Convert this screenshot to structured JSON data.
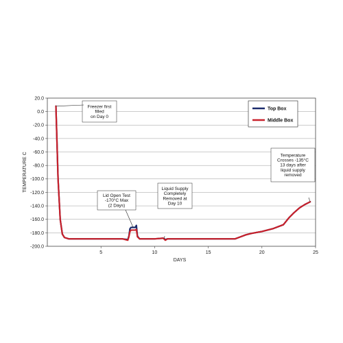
{
  "chart_data": {
    "type": "line",
    "title": "",
    "xlabel": "DAYS",
    "ylabel": "TEMPERATURE C",
    "xlim": [
      0,
      25
    ],
    "ylim": [
      -200,
      20
    ],
    "x_ticks": [
      5,
      10,
      15,
      20,
      25
    ],
    "y_ticks": [
      20,
      0,
      -20,
      -40,
      -60,
      -80,
      -100,
      -120,
      -140,
      -160,
      -180,
      -200
    ],
    "x_tick_labels": [
      "5",
      "10",
      "15",
      "20",
      "25"
    ],
    "y_tick_labels": [
      "20.0",
      "0.0",
      "-20.0",
      "-40.0",
      "-60.0",
      "-80.0",
      "-100.0",
      "-120.0",
      "-140.0",
      "-160.0",
      "-180.0",
      "-200.0"
    ],
    "grid": true,
    "legend_position": "top-right",
    "series": [
      {
        "name": "Top Box",
        "color": "#1a2a6c",
        "x": [
          0.8,
          1.0,
          1.2,
          1.4,
          1.6,
          2.0,
          3.0,
          4.0,
          5.0,
          6.0,
          7.0,
          7.5,
          7.6,
          7.7,
          7.8,
          8.2,
          8.3,
          8.4,
          8.6,
          9.0,
          10.0,
          10.8,
          11.0,
          11.2,
          12.0,
          14.0,
          16.0,
          17.5,
          18.0,
          18.5,
          19.0,
          20.0,
          21.0,
          22.0,
          22.5,
          23.0,
          23.5,
          24.0,
          24.5
        ],
        "y": [
          8,
          -100,
          -160,
          -182,
          -187,
          -189,
          -189,
          -189,
          -189,
          -189,
          -189,
          -190,
          -185,
          -174,
          -172,
          -172,
          -169,
          -185,
          -189,
          -189,
          -189,
          -188,
          -190,
          -189,
          -189,
          -189,
          -189,
          -189,
          -186,
          -183,
          -181,
          -178,
          -174,
          -168,
          -158,
          -150,
          -143,
          -138,
          -134
        ]
      },
      {
        "name": "Middle Box",
        "color": "#c8202a",
        "x": [
          0.8,
          1.0,
          1.2,
          1.4,
          1.6,
          2.0,
          3.0,
          4.0,
          5.0,
          6.0,
          7.0,
          7.5,
          7.6,
          7.7,
          7.8,
          8.2,
          8.3,
          8.4,
          8.6,
          9.0,
          10.0,
          10.8,
          11.0,
          11.2,
          12.0,
          14.0,
          16.0,
          17.5,
          18.0,
          18.5,
          19.0,
          20.0,
          21.0,
          22.0,
          22.5,
          23.0,
          23.5,
          24.0,
          24.5
        ],
        "y": [
          8,
          -100,
          -160,
          -182,
          -187,
          -189,
          -189,
          -189,
          -189,
          -189,
          -189,
          -191,
          -186,
          -178,
          -176,
          -176,
          -175,
          -186,
          -189,
          -189,
          -189,
          -188,
          -191,
          -189,
          -189,
          -189,
          -189,
          -189,
          -186,
          -183,
          -181,
          -178,
          -174,
          -168,
          -158,
          -150,
          -143,
          -138,
          -134
        ]
      }
    ],
    "annotations": [
      {
        "lines": [
          "Freezer first",
          "filled",
          "on Day 0"
        ],
        "x": 0.8,
        "y": 8
      },
      {
        "lines": [
          "Lid Open Test",
          "-170°C Max",
          "(2 Days)"
        ],
        "x": 8.0,
        "y": -172
      },
      {
        "lines": [
          "Liquid Supply",
          "Completely",
          "Removed at",
          "Day 10"
        ],
        "x": 10.9,
        "y": -189
      },
      {
        "lines": [
          "Temperature",
          "Crosses -135°C",
          "13 days after",
          "liquid supply",
          "removed"
        ],
        "x": 24.5,
        "y": -134
      }
    ]
  }
}
